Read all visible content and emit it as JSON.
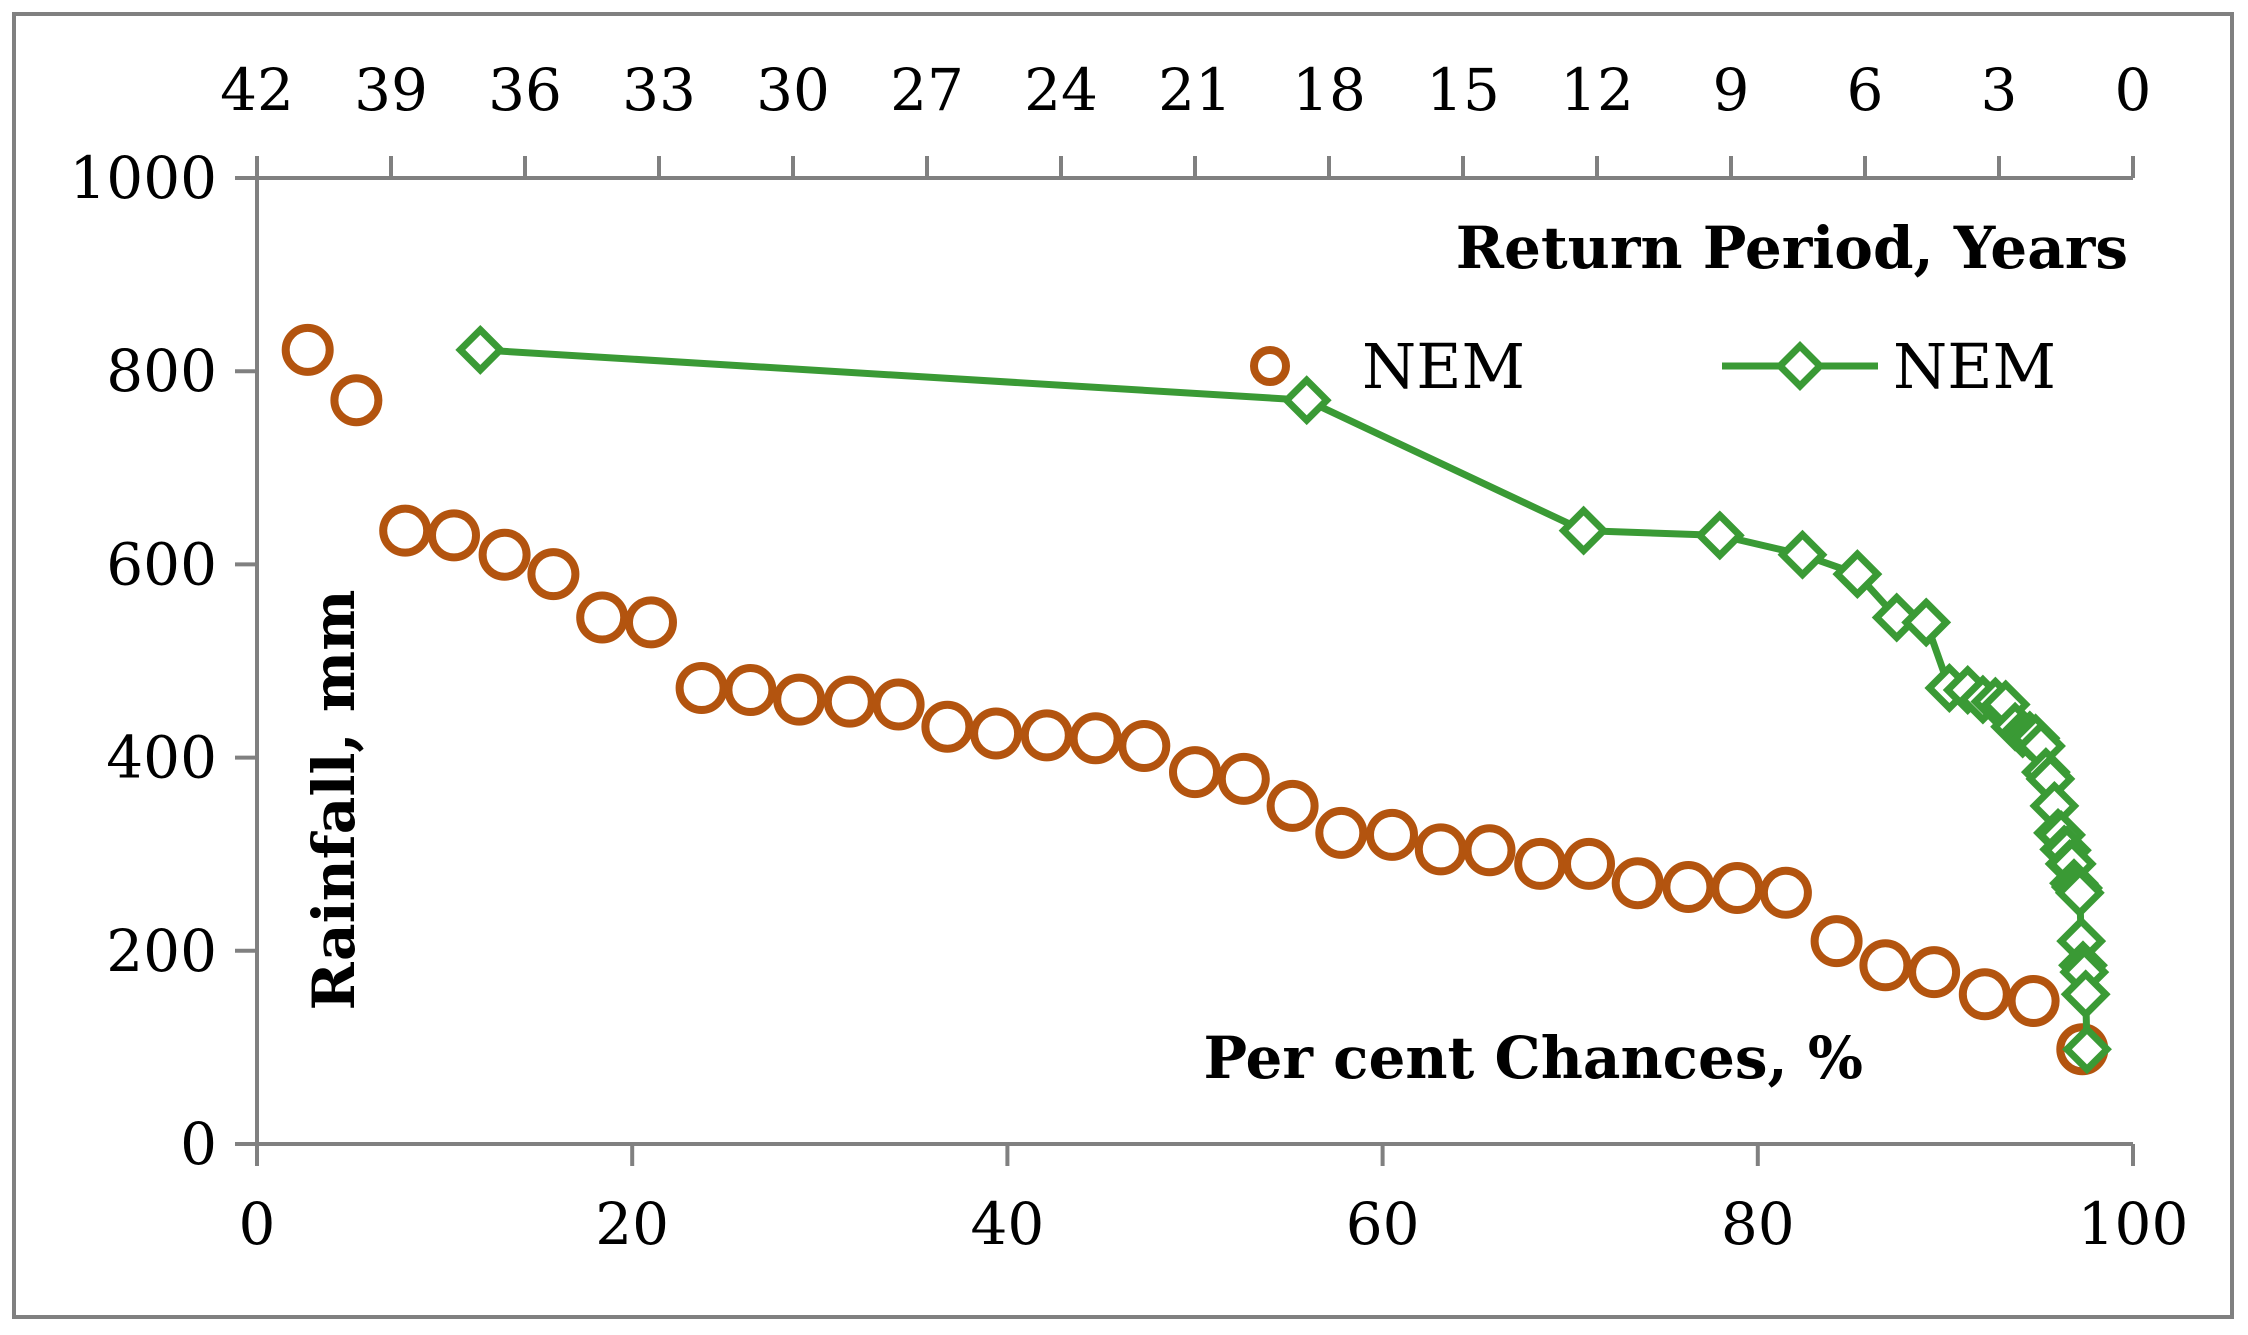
{
  "chart_data": {
    "type": "scatter",
    "title": "",
    "xlabel": "Per cent Chances, %",
    "ylabel": "Rainfall, mm",
    "x2label": "Return Period, Years",
    "xlim": [
      0,
      100
    ],
    "ylim": [
      0,
      1000
    ],
    "x2lim": [
      42,
      0
    ],
    "x_ticks": [
      "0",
      "20",
      "40",
      "60",
      "80",
      "100"
    ],
    "x_tick_values": [
      0,
      20,
      40,
      60,
      80,
      100
    ],
    "y_ticks": [
      "0",
      "200",
      "400",
      "600",
      "800",
      "1000"
    ],
    "y_tick_values": [
      0,
      200,
      400,
      600,
      800,
      1000
    ],
    "x2_ticks": [
      "42",
      "39",
      "36",
      "33",
      "30",
      "27",
      "24",
      "21",
      "18",
      "15",
      "12",
      "9",
      "6",
      "3",
      "0"
    ],
    "x2_tick_values": [
      42,
      39,
      36,
      33,
      30,
      27,
      24,
      21,
      18,
      15,
      12,
      9,
      6,
      3,
      0
    ],
    "grid": false,
    "legend_position": "top-right",
    "colors": {
      "series1": "#b3540f",
      "series2": "#3a9a35",
      "frame": "#808080",
      "axis": "#808080"
    },
    "series": [
      {
        "name": "NEM",
        "axis": "bottom",
        "marker": "circle",
        "line": false,
        "x": [
          2.7,
          5.3,
          7.9,
          10.5,
          13.2,
          15.8,
          18.4,
          21.0,
          23.7,
          26.3,
          28.9,
          31.6,
          34.2,
          36.8,
          39.4,
          42.1,
          44.7,
          47.3,
          50.0,
          52.6,
          55.2,
          57.8,
          60.5,
          63.1,
          65.7,
          68.4,
          71.0,
          73.6,
          76.3,
          78.9,
          81.5,
          84.2,
          86.8,
          89.4,
          92.1,
          94.7,
          97.3
        ],
        "y": [
          822,
          770,
          635,
          630,
          610,
          590,
          545,
          540,
          472,
          470,
          460,
          458,
          455,
          432,
          425,
          423,
          420,
          412,
          385,
          378,
          350,
          322,
          320,
          305,
          304,
          290,
          290,
          270,
          266,
          265,
          260,
          210,
          185,
          178,
          155,
          148,
          98
        ]
      },
      {
        "name": "NEM",
        "axis": "top",
        "marker": "diamond",
        "line": true,
        "x": [
          37.0,
          18.5,
          12.3,
          9.25,
          7.4,
          6.17,
          5.29,
          4.63,
          4.11,
          3.7,
          3.36,
          3.08,
          2.85,
          2.64,
          2.47,
          2.31,
          2.18,
          2.06,
          1.95,
          1.85,
          1.76,
          1.68,
          1.61,
          1.54,
          1.48,
          1.42,
          1.37,
          1.32,
          1.28,
          1.23,
          1.19,
          1.16,
          1.12,
          1.09,
          1.06,
          1.03
        ],
        "y": [
          822,
          770,
          635,
          630,
          610,
          590,
          545,
          540,
          472,
          470,
          460,
          458,
          455,
          432,
          425,
          423,
          420,
          412,
          385,
          378,
          350,
          322,
          320,
          305,
          304,
          290,
          290,
          270,
          266,
          265,
          260,
          210,
          185,
          178,
          155,
          98
        ]
      }
    ]
  }
}
